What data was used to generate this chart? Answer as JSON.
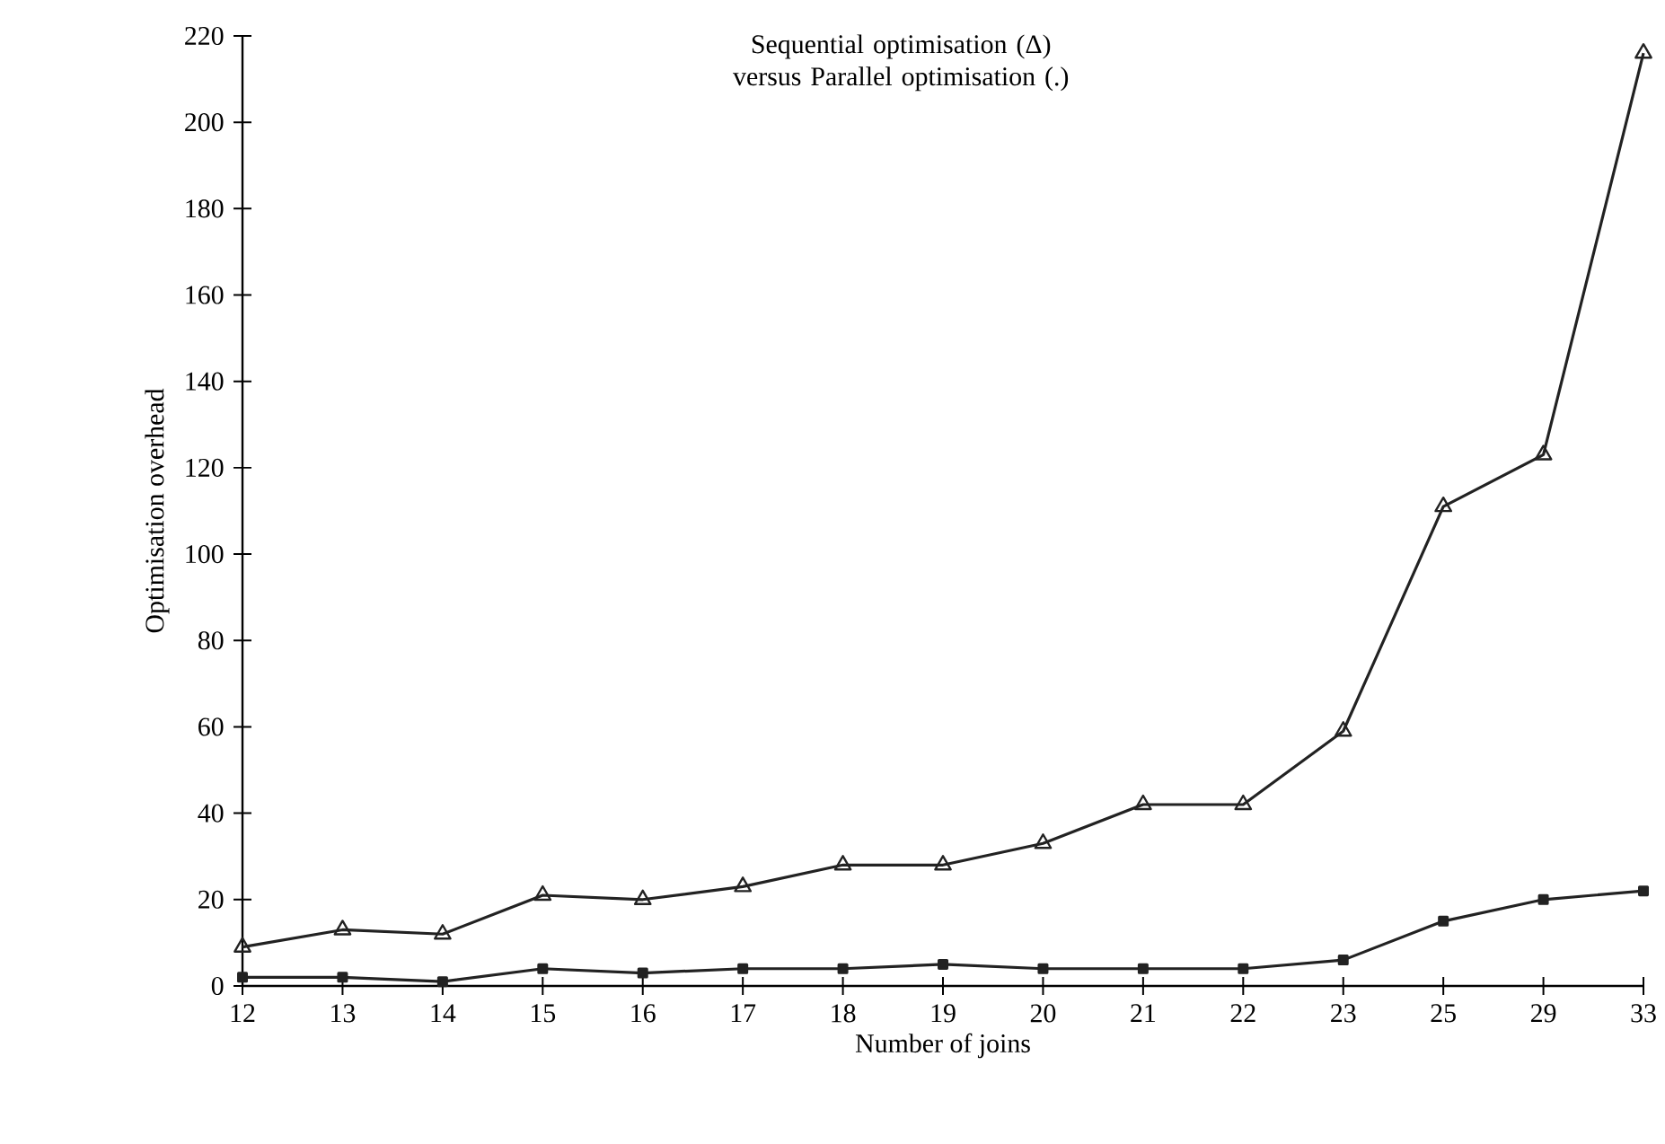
{
  "chart_data": {
    "type": "line",
    "title": "Sequential optimisation (Δ) versus Parallel optimisation (.)",
    "xlabel": "Number of joins",
    "ylabel": "Optimisation overhead",
    "categories": [
      "12",
      "13",
      "14",
      "15",
      "16",
      "17",
      "18",
      "19",
      "20",
      "21",
      "22",
      "23",
      "25",
      "29",
      "33"
    ],
    "ylim": [
      0,
      220
    ],
    "yticks": [
      0,
      20,
      40,
      60,
      80,
      100,
      120,
      140,
      160,
      180,
      200,
      220
    ],
    "series": [
      {
        "color": "#222222",
        "marker": "triangle",
        "values": [
          9,
          13,
          12,
          21,
          20,
          23,
          28,
          28,
          33,
          42,
          42,
          59,
          111,
          123,
          216
        ]
      },
      {
        "color": "#222222",
        "marker": "square",
        "values": [
          2,
          2,
          1,
          4,
          3,
          4,
          4,
          5,
          4,
          4,
          4,
          6,
          15,
          20,
          22
        ]
      }
    ]
  }
}
